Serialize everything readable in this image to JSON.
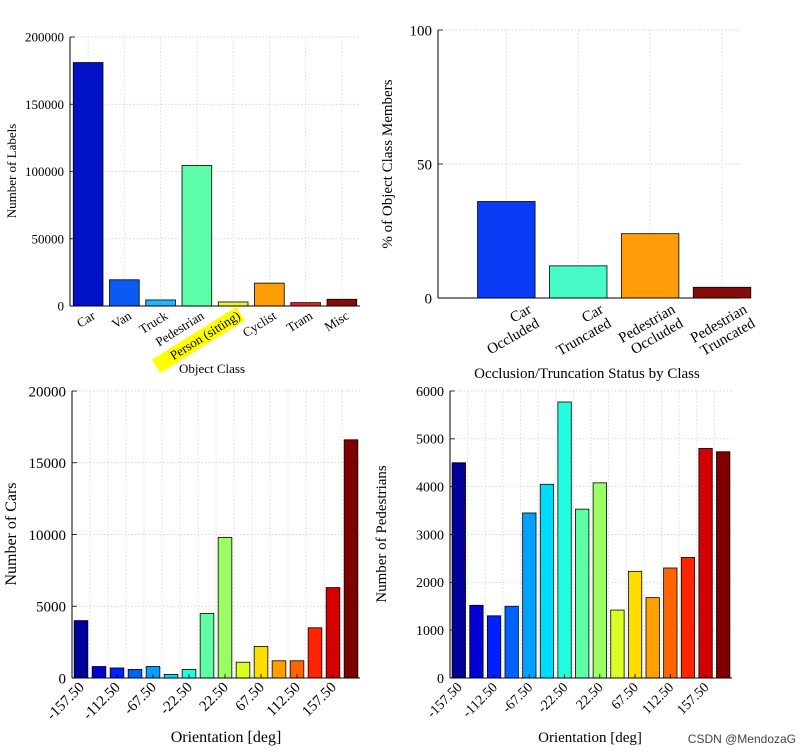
{
  "watermark": "CSDN @MendozaG",
  "chart_data": [
    {
      "id": "object-class",
      "type": "bar",
      "xlabel": "Object Class",
      "ylabel": "Number of Labels",
      "ylim": [
        0,
        200000
      ],
      "yticks": [
        "0",
        "50000",
        "100000",
        "150000",
        "200000"
      ],
      "categories": [
        "Car",
        "Van",
        "Truck",
        "Pedestrian",
        "Person (sitting)",
        "Cyclist",
        "Tram",
        "Misc"
      ],
      "values": [
        181000,
        19500,
        4500,
        104500,
        3000,
        17000,
        2500,
        5000
      ],
      "colors": [
        "#0011c6",
        "#0a5af5",
        "#1bb8ff",
        "#5cfca8",
        "#f0f22f",
        "#ff9c08",
        "#e81f1f",
        "#860b0b"
      ],
      "highlight_label": "Person (sitting)",
      "highlight_color": "#ffff00",
      "grid": true
    },
    {
      "id": "occlusion",
      "type": "bar",
      "xlabel": "Occlusion/Truncation Status by Class",
      "ylabel": "% of Object Class Members",
      "ylim": [
        0,
        100
      ],
      "yticks": [
        "0",
        "50",
        "100"
      ],
      "categories": [
        [
          "Car",
          "Occluded"
        ],
        [
          "Car",
          "Truncated"
        ],
        [
          "Pedestrian",
          "Occluded"
        ],
        [
          "Pedestrian",
          "Truncated"
        ]
      ],
      "values": [
        36,
        12,
        24,
        4
      ],
      "colors": [
        "#0a3cf5",
        "#46fbc6",
        "#ff9c08",
        "#860b0b"
      ],
      "grid": true
    },
    {
      "id": "car-orientation",
      "type": "bar",
      "xlabel": "Orientation [deg]",
      "ylabel": "Number of Cars",
      "ylim": [
        0,
        20000
      ],
      "yticks": [
        "0",
        "5000",
        "10000",
        "15000",
        "20000"
      ],
      "xticks": [
        "-157.50",
        "-112.50",
        "-67.50",
        "-22.50",
        "22.50",
        "67.50",
        "112.50",
        "157.50"
      ],
      "values": [
        4000,
        800,
        700,
        600,
        800,
        250,
        600,
        4500,
        9800,
        1100,
        2200,
        1200,
        1200,
        3500,
        6300,
        16600
      ],
      "colors": [
        "#00009b",
        "#0000d5",
        "#0021ff",
        "#0061ff",
        "#00a1ff",
        "#00dcff",
        "#21ffde",
        "#5dffa2",
        "#9aff65",
        "#d9ff25",
        "#ffdc00",
        "#ffa000",
        "#ff6400",
        "#ff2400",
        "#d50000",
        "#800000"
      ],
      "grid": true
    },
    {
      "id": "pedestrian-orientation",
      "type": "bar",
      "xlabel": "Orientation [deg]",
      "ylabel": "Number of Pedestrians",
      "ylim": [
        0,
        6000
      ],
      "yticks": [
        "0",
        "1000",
        "2000",
        "3000",
        "4000",
        "5000",
        "6000"
      ],
      "xticks": [
        "-157.50",
        "-112.50",
        "-67.50",
        "-22.50",
        "22.50",
        "67.50",
        "112.50",
        "157.50"
      ],
      "values": [
        4500,
        1520,
        1300,
        1500,
        3450,
        4050,
        5770,
        3530,
        4080,
        1420,
        2230,
        1680,
        2300,
        2520,
        4800,
        4730
      ],
      "colors": [
        "#00009b",
        "#0000d5",
        "#0021ff",
        "#0061ff",
        "#00a1ff",
        "#00dcff",
        "#21ffde",
        "#5dffa2",
        "#9aff65",
        "#d9ff25",
        "#ffdc00",
        "#ffa000",
        "#ff6400",
        "#ff2400",
        "#d50000",
        "#800000"
      ],
      "grid": true
    }
  ]
}
